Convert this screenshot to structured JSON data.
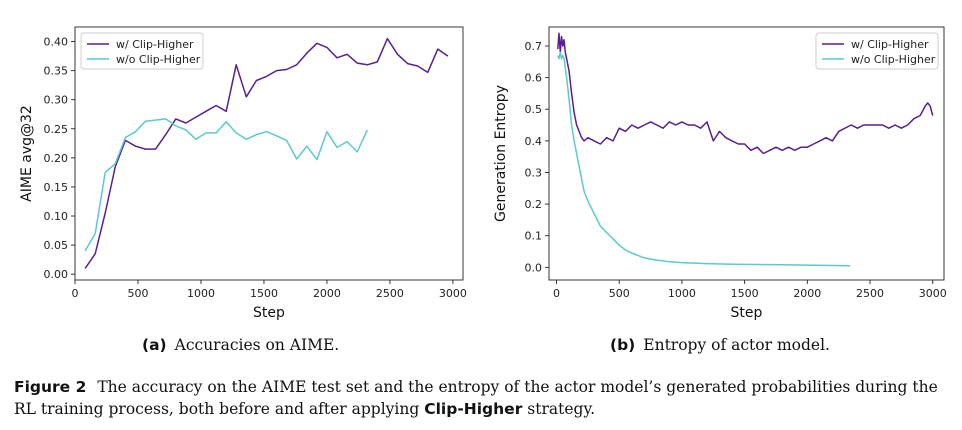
{
  "chart_data": [
    {
      "type": "line",
      "subcaption_tag": "(a)",
      "subcaption_text": "Accuracies on AIME.",
      "xlabel": "Step",
      "ylabel": "AIME avg@32",
      "xlim": [
        0,
        3080
      ],
      "ylim": [
        -0.01,
        0.425
      ],
      "xticks": [
        0,
        500,
        1000,
        1500,
        2000,
        2500,
        3000
      ],
      "yticks": [
        0.0,
        0.05,
        0.1,
        0.15,
        0.2,
        0.25,
        0.3,
        0.35,
        0.4
      ],
      "ytick_labels": [
        "0.00",
        "0.05",
        "0.10",
        "0.15",
        "0.20",
        "0.25",
        "0.30",
        "0.35",
        "0.40"
      ],
      "legend_position": "top-left",
      "series": [
        {
          "name": "w/ Clip-Higher",
          "color": "#5a1f8f",
          "x": [
            80,
            160,
            240,
            320,
            400,
            480,
            560,
            640,
            720,
            800,
            880,
            960,
            1040,
            1120,
            1200,
            1280,
            1360,
            1440,
            1520,
            1600,
            1680,
            1760,
            1840,
            1920,
            2000,
            2080,
            2160,
            2240,
            2320,
            2400,
            2480,
            2560,
            2640,
            2720,
            2800,
            2880,
            2960
          ],
          "y": [
            0.01,
            0.035,
            0.105,
            0.185,
            0.23,
            0.22,
            0.215,
            0.215,
            0.24,
            0.267,
            0.26,
            0.27,
            0.28,
            0.29,
            0.28,
            0.36,
            0.305,
            0.333,
            0.34,
            0.35,
            0.352,
            0.36,
            0.38,
            0.397,
            0.39,
            0.372,
            0.378,
            0.363,
            0.36,
            0.365,
            0.405,
            0.378,
            0.362,
            0.358,
            0.347,
            0.387,
            0.375
          ]
        },
        {
          "name": "w/o Clip-Higher",
          "color": "#5bc8d4",
          "x": [
            80,
            160,
            240,
            320,
            400,
            480,
            560,
            640,
            720,
            800,
            880,
            960,
            1040,
            1120,
            1200,
            1280,
            1360,
            1440,
            1520,
            1600,
            1680,
            1760,
            1840,
            1920,
            2000,
            2080,
            2160,
            2240,
            2320
          ],
          "y": [
            0.04,
            0.07,
            0.175,
            0.19,
            0.235,
            0.245,
            0.263,
            0.265,
            0.267,
            0.255,
            0.248,
            0.232,
            0.243,
            0.243,
            0.262,
            0.243,
            0.232,
            0.24,
            0.245,
            0.238,
            0.23,
            0.198,
            0.22,
            0.197,
            0.245,
            0.218,
            0.228,
            0.21,
            0.248
          ]
        }
      ]
    },
    {
      "type": "line",
      "subcaption_tag": "(b)",
      "subcaption_text": "Entropy of actor model.",
      "xlabel": "Step",
      "ylabel": "Generation Entropy",
      "xlim": [
        -60,
        3090
      ],
      "ylim": [
        -0.04,
        0.76
      ],
      "xticks": [
        0,
        500,
        1000,
        1500,
        2000,
        2500,
        3000
      ],
      "yticks": [
        0.0,
        0.1,
        0.2,
        0.3,
        0.4,
        0.5,
        0.6,
        0.7
      ],
      "ytick_labels": [
        "0.0",
        "0.1",
        "0.2",
        "0.3",
        "0.4",
        "0.5",
        "0.6",
        "0.7"
      ],
      "legend_position": "top-right",
      "series": [
        {
          "name": "w/ Clip-Higher",
          "color": "#5a1f8f",
          "x": [
            10,
            20,
            30,
            40,
            50,
            60,
            70,
            80,
            100,
            120,
            140,
            160,
            180,
            200,
            220,
            250,
            300,
            350,
            400,
            450,
            500,
            550,
            600,
            650,
            700,
            750,
            800,
            850,
            900,
            950,
            1000,
            1050,
            1100,
            1150,
            1200,
            1250,
            1300,
            1350,
            1400,
            1450,
            1500,
            1550,
            1600,
            1650,
            1700,
            1750,
            1800,
            1850,
            1900,
            1950,
            2000,
            2050,
            2100,
            2150,
            2200,
            2250,
            2300,
            2350,
            2400,
            2450,
            2500,
            2550,
            2600,
            2650,
            2700,
            2750,
            2800,
            2850,
            2900,
            2940,
            2960,
            2980,
            3000
          ],
          "y": [
            0.69,
            0.74,
            0.68,
            0.73,
            0.7,
            0.72,
            0.68,
            0.66,
            0.62,
            0.55,
            0.49,
            0.45,
            0.43,
            0.41,
            0.4,
            0.41,
            0.4,
            0.39,
            0.41,
            0.4,
            0.44,
            0.43,
            0.45,
            0.44,
            0.45,
            0.46,
            0.45,
            0.44,
            0.46,
            0.45,
            0.46,
            0.45,
            0.45,
            0.44,
            0.46,
            0.4,
            0.43,
            0.41,
            0.4,
            0.39,
            0.39,
            0.37,
            0.38,
            0.36,
            0.37,
            0.38,
            0.37,
            0.38,
            0.37,
            0.38,
            0.38,
            0.39,
            0.4,
            0.41,
            0.4,
            0.43,
            0.44,
            0.45,
            0.44,
            0.45,
            0.45,
            0.45,
            0.45,
            0.44,
            0.45,
            0.44,
            0.45,
            0.47,
            0.48,
            0.51,
            0.52,
            0.51,
            0.48
          ]
        },
        {
          "name": "w/o Clip-Higher",
          "color": "#5bc8d4",
          "x": [
            10,
            20,
            30,
            40,
            50,
            60,
            70,
            80,
            100,
            120,
            140,
            160,
            180,
            200,
            220,
            250,
            300,
            350,
            400,
            450,
            500,
            550,
            600,
            700,
            800,
            900,
            1000,
            1200,
            1400,
            1600,
            1800,
            2000,
            2200,
            2340
          ],
          "y": [
            0.67,
            0.66,
            0.68,
            0.66,
            0.67,
            0.66,
            0.63,
            0.6,
            0.53,
            0.45,
            0.4,
            0.36,
            0.32,
            0.28,
            0.24,
            0.21,
            0.17,
            0.13,
            0.11,
            0.09,
            0.07,
            0.055,
            0.045,
            0.03,
            0.023,
            0.018,
            0.015,
            0.012,
            0.01,
            0.009,
            0.008,
            0.007,
            0.006,
            0.005
          ]
        }
      ]
    }
  ],
  "caption": {
    "label": "Figure 2",
    "text_part1": "The accuracy on the AIME test set and the entropy of the actor model’s generated probabilities during the RL training process, both before and after applying",
    "strong": "Clip-Higher",
    "text_part2": "strategy."
  },
  "colors": {
    "purple": "#5a1f8f",
    "cyan": "#5bc8d4"
  }
}
